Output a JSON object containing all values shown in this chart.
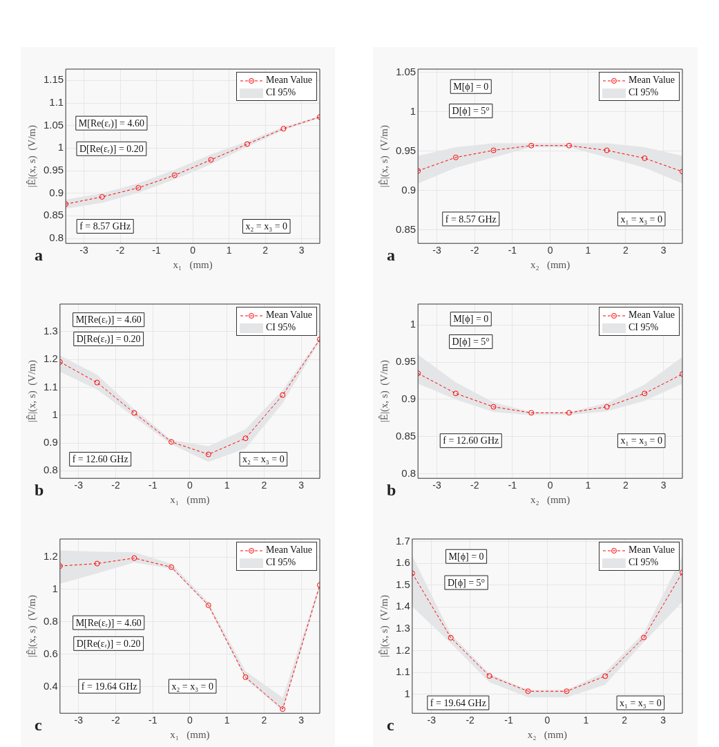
{
  "chart_data": [
    {
      "type": "line",
      "xlabel": "x₁   (mm)",
      "ylabel": "|Ê|(x, s)  (V/m)",
      "x": [
        -3.5,
        -2.5,
        -1.5,
        -0.5,
        0.5,
        1.5,
        2.5,
        3.5
      ],
      "xlim": [
        -3.5,
        3.5
      ],
      "xticks": [
        -3,
        -2,
        -1,
        0,
        1,
        2,
        3
      ],
      "ylim": [
        0.789,
        1.175
      ],
      "yticks": [
        0.8,
        0.85,
        0.9,
        0.95,
        1,
        1.05,
        1.1,
        1.15
      ],
      "grid": true,
      "legend": "top right",
      "marker": "circle",
      "line_style": "dashed",
      "series": [
        {
          "name": "Mean Value",
          "color": "#ff0000",
          "values": [
            0.876,
            0.892,
            0.912,
            0.94,
            0.974,
            1.009,
            1.043,
            1.069
          ],
          "lower": [
            0.866,
            0.879,
            0.901,
            0.931,
            0.964,
            1.003,
            1.04,
            1.066
          ],
          "upper": [
            0.886,
            0.9,
            0.922,
            0.952,
            0.986,
            1.015,
            1.047,
            1.071
          ]
        }
      ],
      "annotations": [
        "CI 95%",
        "M[Re(εᵣ)] = 4.60",
        "D[Re(εᵣ)] = 0.20",
        "f = 8.57 GHz",
        "x₂ = x₃ = 0",
        "a"
      ]
    },
    {
      "type": "line",
      "xlabel": "x₂   (mm)",
      "ylabel": "|Ê|(x, s)  (V/m)",
      "x": [
        -3.5,
        -2.5,
        -1.5,
        -0.5,
        0.5,
        1.5,
        2.5,
        3.5
      ],
      "xlim": [
        -3.5,
        3.5
      ],
      "xticks": [
        -3,
        -2,
        -1,
        0,
        1,
        2,
        3
      ],
      "ylim": [
        0.833,
        1.054
      ],
      "yticks": [
        0.85,
        0.9,
        0.95,
        1,
        1.05
      ],
      "grid": true,
      "legend": "top right",
      "marker": "circle",
      "line_style": "dashed",
      "series": [
        {
          "name": "Mean Value",
          "color": "#ff0000",
          "values": [
            0.925,
            0.942,
            0.951,
            0.957,
            0.957,
            0.951,
            0.941,
            0.924
          ],
          "lower": [
            0.909,
            0.929,
            0.942,
            0.955,
            0.955,
            0.942,
            0.929,
            0.909
          ],
          "upper": [
            0.944,
            0.955,
            0.96,
            0.96,
            0.96,
            0.96,
            0.955,
            0.944
          ]
        }
      ],
      "annotations": [
        "CI 95%",
        "M[ϕ] = 0",
        "D[ϕ] = 5°",
        "f = 8.57 GHz",
        "x₁ = x₃ = 0",
        "a"
      ]
    },
    {
      "type": "line",
      "xlabel": "x₁   (mm)",
      "ylabel": "|Ê|(x, s)  (V/m)",
      "x": [
        -3.5,
        -2.5,
        -1.5,
        -0.5,
        0.5,
        1.5,
        2.5,
        3.5
      ],
      "xlim": [
        -3.5,
        3.5
      ],
      "xticks": [
        -3,
        -2,
        -1,
        0,
        1,
        2,
        3
      ],
      "ylim": [
        0.773,
        1.399
      ],
      "yticks": [
        0.8,
        0.9,
        1,
        1.1,
        1.2,
        1.3
      ],
      "grid": true,
      "legend": "top right",
      "marker": "circle",
      "line_style": "dashed",
      "series": [
        {
          "name": "Mean Value",
          "color": "#ff0000",
          "values": [
            1.191,
            1.117,
            1.008,
            0.904,
            0.859,
            0.917,
            1.072,
            1.272
          ],
          "lower": [
            1.156,
            1.092,
            0.993,
            0.895,
            0.832,
            0.88,
            1.043,
            1.266
          ],
          "upper": [
            1.215,
            1.145,
            1.022,
            0.911,
            0.888,
            0.95,
            1.09,
            1.277
          ]
        }
      ],
      "annotations": [
        "CI 95%",
        "M[Re(εᵣ)] = 4.60",
        "D[Re(εᵣ)] = 0.20",
        "f = 12.60 GHz",
        "x₂ = x₃ = 0",
        "b"
      ]
    },
    {
      "type": "line",
      "xlabel": "x₂   (mm)",
      "ylabel": "|Ê|(x, s)  (V/m)",
      "x": [
        -3.5,
        -2.5,
        -1.5,
        -0.5,
        0.5,
        1.5,
        2.5,
        3.5
      ],
      "xlim": [
        -3.5,
        3.5
      ],
      "xticks": [
        -3,
        -2,
        -1,
        0,
        1,
        2,
        3
      ],
      "ylim": [
        0.794,
        1.028
      ],
      "yticks": [
        0.8,
        0.85,
        0.9,
        0.95,
        1
      ],
      "grid": true,
      "legend": "top right",
      "marker": "circle",
      "line_style": "dashed",
      "series": [
        {
          "name": "Mean Value",
          "color": "#ff0000",
          "values": [
            0.935,
            0.908,
            0.89,
            0.882,
            0.882,
            0.89,
            0.908,
            0.934
          ],
          "lower": [
            0.921,
            0.9,
            0.883,
            0.879,
            0.879,
            0.884,
            0.898,
            0.921
          ],
          "upper": [
            0.96,
            0.923,
            0.896,
            0.883,
            0.883,
            0.895,
            0.92,
            0.957
          ]
        }
      ],
      "annotations": [
        "CI 95%",
        "M[ϕ] = 0",
        "D[ϕ] = 5°",
        "f = 12.60 GHz",
        "x₁ = x₃ = 0",
        "b"
      ]
    },
    {
      "type": "line",
      "xlabel": "x₁   (mm)",
      "ylabel": "|Ê|(x, s)  (V/m)",
      "x": [
        -3.5,
        -2.5,
        -1.5,
        -0.5,
        0.5,
        1.5,
        2.5,
        3.5
      ],
      "xlim": [
        -3.5,
        3.5
      ],
      "xticks": [
        -3,
        -2,
        -1,
        0,
        1,
        2,
        3
      ],
      "ylim": [
        0.234,
        1.312
      ],
      "yticks": [
        0.4,
        0.6,
        0.8,
        1,
        1.2
      ],
      "grid": true,
      "legend": "top right",
      "marker": "circle",
      "line_style": "dashed",
      "series": [
        {
          "name": "Mean Value",
          "color": "#ff0000",
          "values": [
            1.145,
            1.16,
            1.194,
            1.138,
            0.902,
            0.457,
            0.26,
            1.027
          ],
          "lower": [
            1.035,
            1.099,
            1.167,
            1.128,
            0.894,
            0.445,
            0.25,
            1.007
          ],
          "upper": [
            1.241,
            1.234,
            1.23,
            1.159,
            0.92,
            0.494,
            0.331,
            1.035
          ]
        }
      ],
      "annotations": [
        "CI 95%",
        "M[Re(εᵣ)] = 4.60",
        "D[Re(εᵣ)] = 0.20",
        "f = 19.64 GHz",
        "x₂ = x₃ = 0",
        "c"
      ]
    },
    {
      "type": "line",
      "xlabel": "x₂   (mm)",
      "ylabel": "|Ê|(x, s)  (V/m)",
      "x": [
        -3.5,
        -2.5,
        -1.5,
        -0.5,
        0.5,
        1.5,
        2.5,
        3.5
      ],
      "xlim": [
        -3.5,
        3.5
      ],
      "xticks": [
        -3,
        -2,
        -1,
        0,
        1,
        2,
        3
      ],
      "ylim": [
        0.913,
        1.711
      ],
      "yticks": [
        1,
        1.1,
        1.2,
        1.3,
        1.4,
        1.5,
        1.6,
        1.7
      ],
      "grid": true,
      "legend": "top right",
      "marker": "circle",
      "line_style": "dashed",
      "series": [
        {
          "name": "Mean Value",
          "color": "#ff0000",
          "values": [
            1.554,
            1.259,
            1.084,
            1.014,
            1.014,
            1.083,
            1.26,
            1.558
          ],
          "lower": [
            1.402,
            1.234,
            1.055,
            0.986,
            0.986,
            1.044,
            1.239,
            1.423
          ],
          "upper": [
            1.634,
            1.276,
            1.094,
            1.02,
            1.02,
            1.102,
            1.281,
            1.634
          ]
        }
      ],
      "annotations": [
        "CI 95%",
        "M[ϕ] = 0",
        "D[ϕ] = 5°",
        "f = 19.64 GHz",
        "x₁ = x₃ = 0",
        "c"
      ]
    }
  ]
}
